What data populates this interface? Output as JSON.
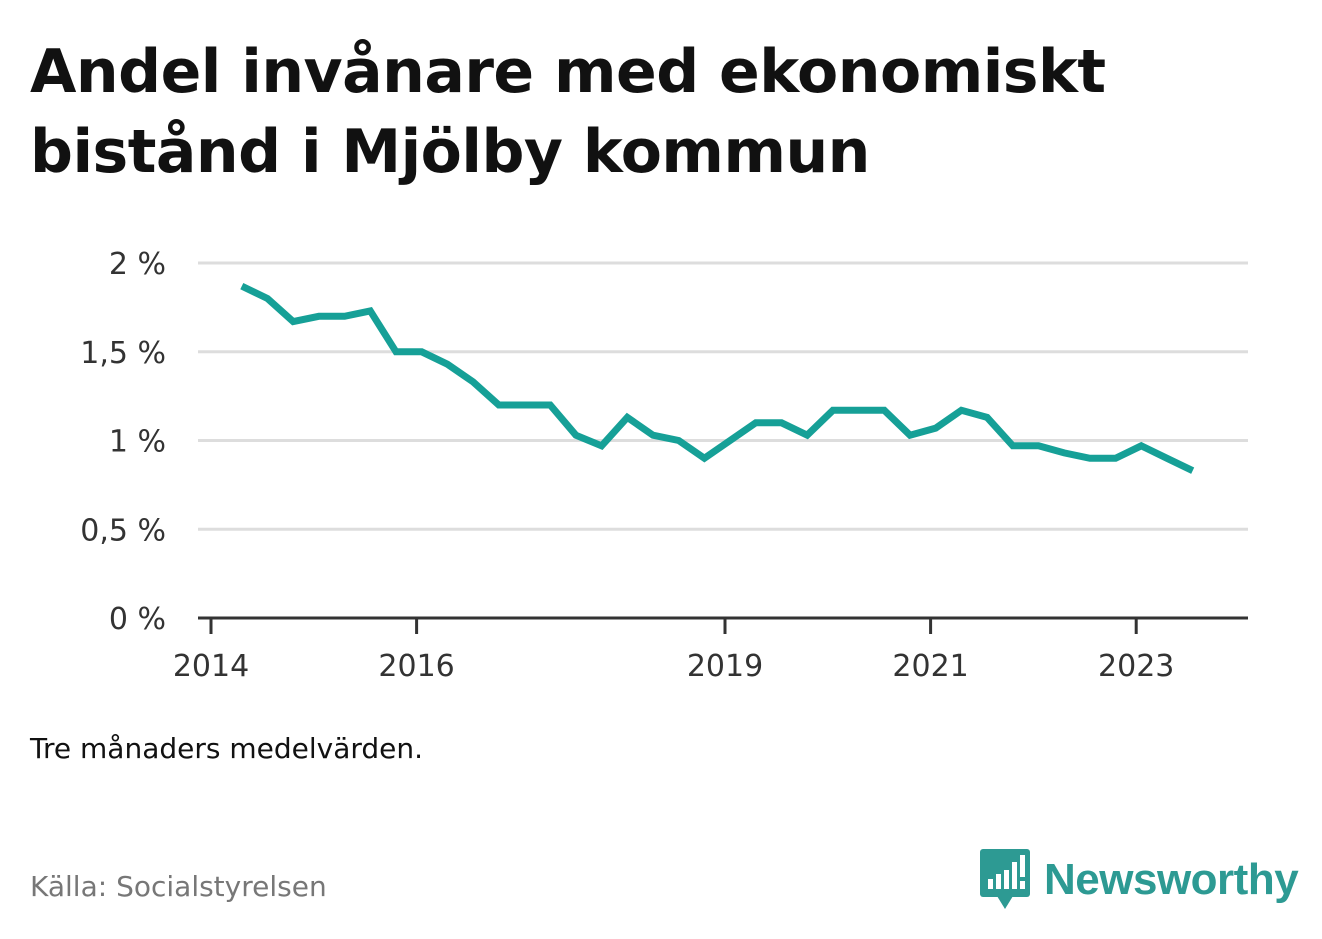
{
  "title": "Andel invånare med ekonomiskt bistånd i Mjölby kommun",
  "note": "Tre månaders medelvärden.",
  "source": "Källa: Socialstyrelsen",
  "brand": {
    "name": "Newsworthy",
    "icon": "bar-chart-speech-bubble-icon",
    "color": "#2d9a93"
  },
  "chart_data": {
    "type": "line",
    "title": "Andel invånare med ekonomiskt bistånd i Mjölby kommun",
    "xlabel": "",
    "ylabel": "",
    "ylim": [
      0,
      2
    ],
    "xlim": [
      2014,
      2024
    ],
    "yticks": [
      0,
      0.5,
      1,
      1.5,
      2
    ],
    "ytick_labels": [
      "0 %",
      "0,5 %",
      "1 %",
      "1,5 %",
      "2 %"
    ],
    "xticks": [
      2014,
      2016,
      2019,
      2021,
      2023
    ],
    "xtick_labels": [
      "2014",
      "2016",
      "2019",
      "2021",
      "2023"
    ],
    "grid": true,
    "legend": "none",
    "line_color": "#16a097",
    "series": [
      {
        "x": [
          2014.3,
          2014.55,
          2014.8,
          2015.05,
          2015.3,
          2015.55,
          2015.8,
          2016.05,
          2016.3,
          2016.55,
          2016.8,
          2017.05,
          2017.3,
          2017.55,
          2017.8,
          2018.05,
          2018.3,
          2018.55,
          2018.8,
          2019.05,
          2019.3,
          2019.55,
          2019.8,
          2020.05,
          2020.3,
          2020.55,
          2020.8,
          2021.05,
          2021.3,
          2021.55,
          2021.8,
          2022.05,
          2022.3,
          2022.55,
          2022.8,
          2023.05,
          2023.3,
          2023.55
        ],
        "values": [
          1.87,
          1.8,
          1.67,
          1.7,
          1.7,
          1.73,
          1.5,
          1.5,
          1.43,
          1.33,
          1.2,
          1.2,
          1.2,
          1.03,
          0.97,
          1.13,
          1.03,
          1.0,
          0.9,
          1.0,
          1.1,
          1.1,
          1.03,
          1.17,
          1.17,
          1.17,
          1.03,
          1.07,
          1.17,
          1.13,
          0.97,
          0.97,
          0.93,
          0.9,
          0.9,
          0.97,
          0.9,
          0.83
        ]
      }
    ]
  }
}
